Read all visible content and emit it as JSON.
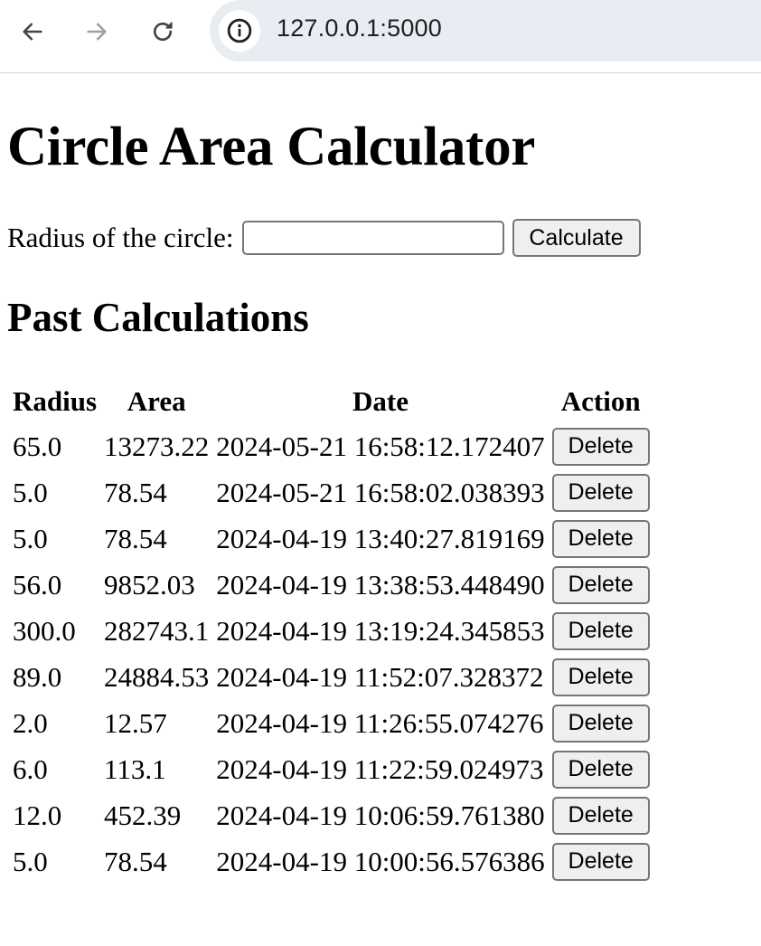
{
  "browser": {
    "url": "127.0.0.1:5000"
  },
  "page": {
    "title": "Circle Area Calculator",
    "form": {
      "label": "Radius of the circle:",
      "input_value": "",
      "submit_label": "Calculate"
    },
    "history": {
      "heading": "Past Calculations",
      "columns": [
        "Radius",
        "Area",
        "Date",
        "Action"
      ],
      "rows": [
        {
          "radius": "65.0",
          "area": "13273.22",
          "date": "2024-05-21 16:58:12.172407",
          "action": "Delete"
        },
        {
          "radius": "5.0",
          "area": "78.54",
          "date": "2024-05-21 16:58:02.038393",
          "action": "Delete"
        },
        {
          "radius": "5.0",
          "area": "78.54",
          "date": "2024-04-19 13:40:27.819169",
          "action": "Delete"
        },
        {
          "radius": "56.0",
          "area": "9852.03",
          "date": "2024-04-19 13:38:53.448490",
          "action": "Delete"
        },
        {
          "radius": "300.0",
          "area": "282743.1",
          "date": "2024-04-19 13:19:24.345853",
          "action": "Delete"
        },
        {
          "radius": "89.0",
          "area": "24884.53",
          "date": "2024-04-19 11:52:07.328372",
          "action": "Delete"
        },
        {
          "radius": "2.0",
          "area": "12.57",
          "date": "2024-04-19 11:26:55.074276",
          "action": "Delete"
        },
        {
          "radius": "6.0",
          "area": "113.1",
          "date": "2024-04-19 11:22:59.024973",
          "action": "Delete"
        },
        {
          "radius": "12.0",
          "area": "452.39",
          "date": "2024-04-19 10:06:59.761380",
          "action": "Delete"
        },
        {
          "radius": "5.0",
          "area": "78.54",
          "date": "2024-04-19 10:00:56.576386",
          "action": "Delete"
        }
      ]
    }
  }
}
